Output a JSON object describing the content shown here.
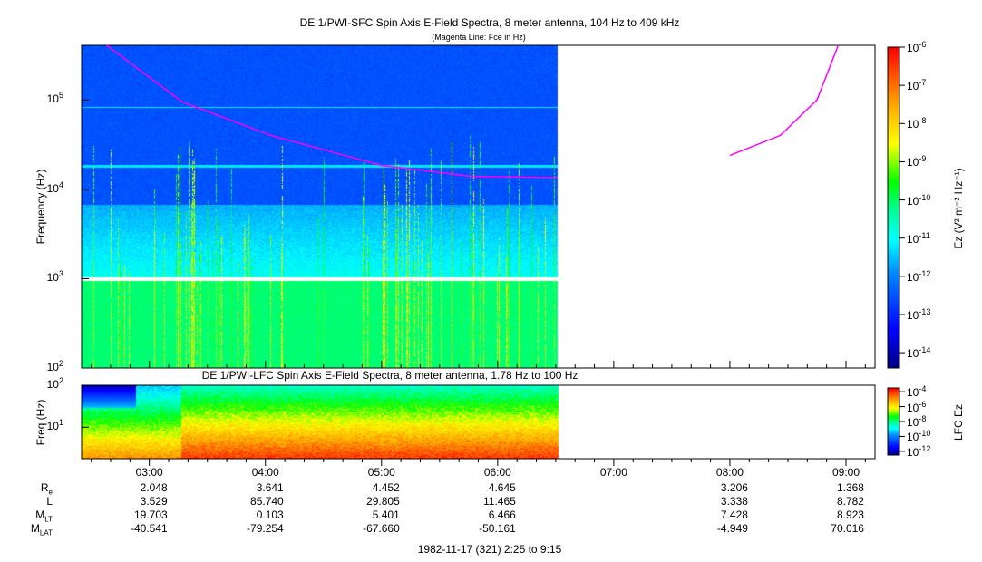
{
  "chart_data": [
    {
      "type": "heatmap",
      "title": "DE 1/PWI-SFC  Spin Axis E-Field Spectra, 8 meter antenna, 104 Hz to 409 kHz",
      "subtitle": "(Magenta Line: Fce in Hz)",
      "ylabel": "Frequency (Hz)",
      "yscale": "log",
      "ylim": [
        100,
        409000
      ],
      "yticks": [
        {
          "v": 100,
          "m": "10",
          "e": "2"
        },
        {
          "v": 1000,
          "m": "10",
          "e": "3"
        },
        {
          "v": 10000,
          "m": "10",
          "e": "4"
        },
        {
          "v": 100000,
          "m": "10",
          "e": "5"
        }
      ],
      "xlim_minutes_from_0225": [
        0,
        410
      ],
      "data_end_minutes": 246,
      "colorbar": {
        "label": "Ez (V² m⁻² Hz⁻¹)",
        "range_log10": [
          -14.4,
          -6
        ],
        "ticks": [
          {
            "v": -6,
            "t": "10",
            "e": "-6"
          },
          {
            "v": -7,
            "t": "10",
            "e": "-7"
          },
          {
            "v": -8,
            "t": "10",
            "e": "-8"
          },
          {
            "v": -9,
            "t": "10",
            "e": "-9"
          },
          {
            "v": -10,
            "t": "10",
            "e": "-10"
          },
          {
            "v": -11,
            "t": "10",
            "e": "-11"
          },
          {
            "v": -12,
            "t": "10",
            "e": "-12"
          },
          {
            "v": -13,
            "t": "10",
            "e": "-13"
          },
          {
            "v": -14,
            "t": "10",
            "e": "-14"
          }
        ]
      },
      "fce_line": {
        "color": "#ff00ff",
        "segments": [
          [
            [
              13,
              409000
            ],
            [
              52,
              95000
            ],
            [
              98,
              40000
            ],
            [
              155,
              18500
            ],
            [
              201,
              14000
            ],
            [
              246,
              13500
            ]
          ],
          [
            [
              335,
              24000
            ],
            [
              361,
              40000
            ],
            [
              380,
              100000
            ],
            [
              391,
              409000
            ]
          ]
        ]
      }
    },
    {
      "type": "heatmap",
      "title": "DE 1/PWI-LFC  Spin Axis E-Field Spectra, 8 meter antenna, 1.78 Hz to 100 Hz",
      "ylabel": "Freq (Hz)",
      "yscale": "log",
      "ylim": [
        1.78,
        100
      ],
      "yticks": [
        {
          "v": 10,
          "m": "10",
          "e": "1"
        },
        {
          "v": 100,
          "m": "10",
          "e": "2"
        }
      ],
      "data_end_minutes": 246,
      "colorbar": {
        "label": "LFC Ez",
        "range_log10": [
          -12.5,
          -3.5
        ],
        "ticks": [
          {
            "v": -4,
            "t": "10",
            "e": "-4"
          },
          {
            "v": -6,
            "t": "10",
            "e": "-6"
          },
          {
            "v": -8,
            "t": "10",
            "e": "-8"
          },
          {
            "v": -10,
            "t": "10",
            "e": "-10"
          },
          {
            "v": -12,
            "t": "10",
            "e": "-12"
          }
        ]
      }
    }
  ],
  "time_axis": {
    "ticks": [
      {
        "min": 35,
        "label": "03:00"
      },
      {
        "min": 95,
        "label": "04:00"
      },
      {
        "min": 155,
        "label": "05:00"
      },
      {
        "min": 215,
        "label": "06:00"
      },
      {
        "min": 275,
        "label": "07:00"
      },
      {
        "min": 335,
        "label": "08:00"
      },
      {
        "min": 395,
        "label": "09:00"
      }
    ],
    "footer": "1982-11-17 (321) 2:25 to 9:15"
  },
  "ephemeris": {
    "rows": [
      {
        "label": "R",
        "sub": "e",
        "values": [
          "2.048",
          "3.641",
          "4.452",
          "4.645",
          "",
          "3.206",
          "1.368"
        ]
      },
      {
        "label": "L",
        "sub": "",
        "values": [
          "3.529",
          "85.740",
          "29.805",
          "11.465",
          "",
          "3.338",
          "8.782"
        ]
      },
      {
        "label": "M",
        "sub": "LT",
        "values": [
          "19.703",
          "0.103",
          "5.401",
          "6.466",
          "",
          "7.428",
          "8.923"
        ]
      },
      {
        "label": "M",
        "sub": "LAT",
        "values": [
          "-40.541",
          "-79.254",
          "-67.660",
          "-50.161",
          "",
          "-4.949",
          "70.016"
        ]
      }
    ]
  }
}
